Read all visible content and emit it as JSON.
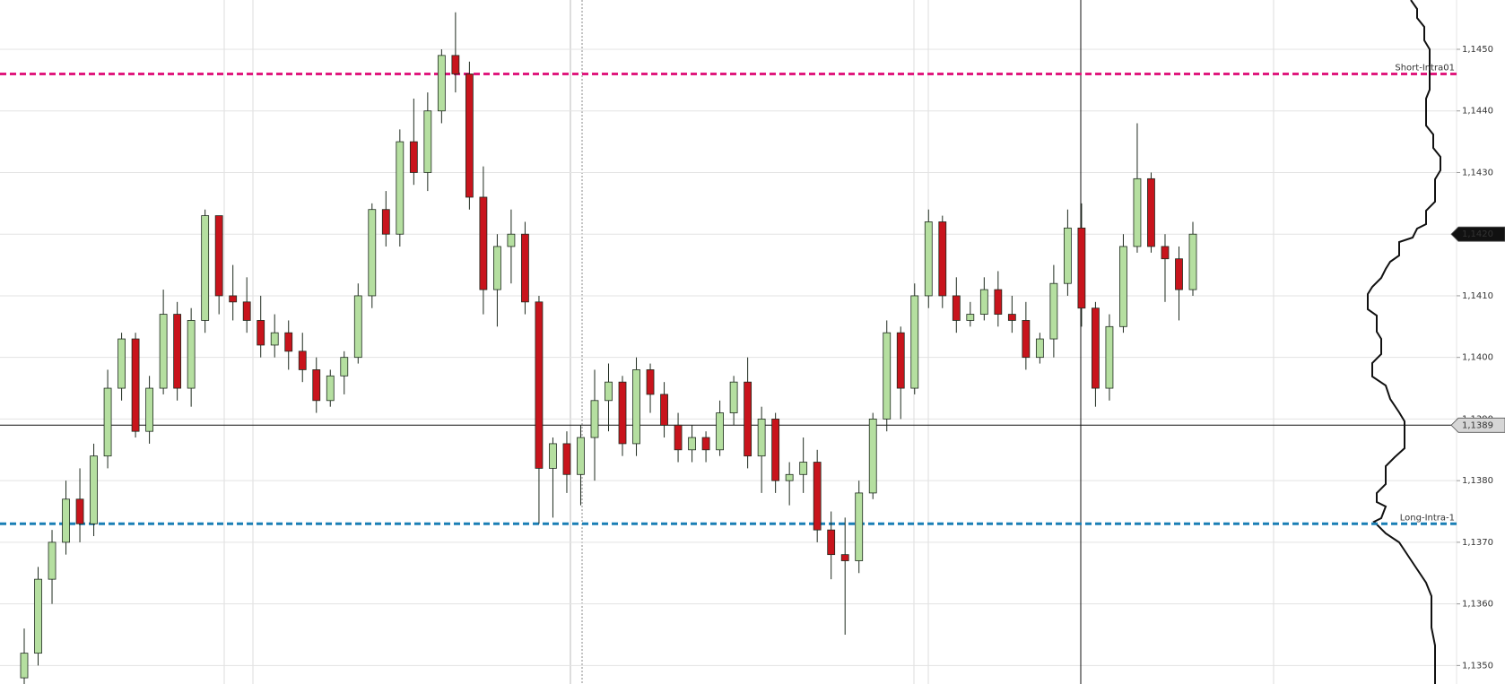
{
  "chart_data": {
    "type": "candlestick",
    "ylim": [
      1.1347,
      1.1458
    ],
    "yticks": [
      {
        "value": 1.135,
        "label": "1,1350"
      },
      {
        "value": 1.136,
        "label": "1,1360"
      },
      {
        "value": 1.137,
        "label": "1,1370"
      },
      {
        "value": 1.138,
        "label": "1,1380"
      },
      {
        "value": 1.139,
        "label": "1,1390"
      },
      {
        "value": 1.14,
        "label": "1,1400"
      },
      {
        "value": 1.141,
        "label": "1,1410"
      },
      {
        "value": 1.142,
        "label": "1,1420"
      },
      {
        "value": 1.143,
        "label": "1,1430"
      },
      {
        "value": 1.144,
        "label": "1,1440"
      },
      {
        "value": 1.145,
        "label": "1,1450"
      }
    ],
    "grid": true,
    "up_color": "#b5dfa0",
    "down_color": "#c8141c",
    "outline_color": "#1e2a1e",
    "levels": [
      {
        "name": "Short-Intra01",
        "value": 1.1446,
        "color": "#e0197d"
      },
      {
        "name": "Long-Intra-1",
        "value": 1.1373,
        "color": "#1a7fb5"
      }
    ],
    "last_price": {
      "value": 1.142,
      "label": "1,1420"
    },
    "crosshair_price": {
      "value": 1.1389,
      "label": "1,1389"
    },
    "candles": [
      [
        1.1348,
        1.1356,
        1.1344,
        1.1352
      ],
      [
        1.1352,
        1.1366,
        1.135,
        1.1364
      ],
      [
        1.1364,
        1.1372,
        1.136,
        1.137
      ],
      [
        1.137,
        1.138,
        1.1368,
        1.1377
      ],
      [
        1.1377,
        1.1382,
        1.137,
        1.1373
      ],
      [
        1.1373,
        1.1386,
        1.1371,
        1.1384
      ],
      [
        1.1384,
        1.1398,
        1.1382,
        1.1395
      ],
      [
        1.1395,
        1.1404,
        1.1393,
        1.1403
      ],
      [
        1.1403,
        1.1404,
        1.1387,
        1.1388
      ],
      [
        1.1388,
        1.1397,
        1.1386,
        1.1395
      ],
      [
        1.1395,
        1.1411,
        1.1394,
        1.1407
      ],
      [
        1.1407,
        1.1409,
        1.1393,
        1.1395
      ],
      [
        1.1395,
        1.1408,
        1.1392,
        1.1406
      ],
      [
        1.1406,
        1.1424,
        1.1404,
        1.1423
      ],
      [
        1.1423,
        1.1423,
        1.1407,
        1.141
      ],
      [
        1.141,
        1.1415,
        1.1406,
        1.1409
      ],
      [
        1.1409,
        1.1413,
        1.1404,
        1.1406
      ],
      [
        1.1406,
        1.141,
        1.14,
        1.1402
      ],
      [
        1.1402,
        1.1407,
        1.14,
        1.1404
      ],
      [
        1.1404,
        1.1406,
        1.1398,
        1.1401
      ],
      [
        1.1401,
        1.1404,
        1.1396,
        1.1398
      ],
      [
        1.1398,
        1.14,
        1.1391,
        1.1393
      ],
      [
        1.1393,
        1.1398,
        1.1392,
        1.1397
      ],
      [
        1.1397,
        1.1401,
        1.1394,
        1.14
      ],
      [
        1.14,
        1.1412,
        1.1399,
        1.141
      ],
      [
        1.141,
        1.1425,
        1.1408,
        1.1424
      ],
      [
        1.1424,
        1.1427,
        1.1418,
        1.142
      ],
      [
        1.142,
        1.1437,
        1.1418,
        1.1435
      ],
      [
        1.1435,
        1.1442,
        1.1428,
        1.143
      ],
      [
        1.143,
        1.1443,
        1.1427,
        1.144
      ],
      [
        1.144,
        1.145,
        1.1438,
        1.1449
      ],
      [
        1.1449,
        1.1456,
        1.1443,
        1.1446
      ],
      [
        1.1446,
        1.1448,
        1.1424,
        1.1426
      ],
      [
        1.1426,
        1.1431,
        1.1407,
        1.1411
      ],
      [
        1.1411,
        1.142,
        1.1405,
        1.1418
      ],
      [
        1.1418,
        1.1424,
        1.1412,
        1.142
      ],
      [
        1.142,
        1.1422,
        1.1407,
        1.1409
      ],
      [
        1.1409,
        1.141,
        1.1373,
        1.1382
      ],
      [
        1.1382,
        1.1387,
        1.1374,
        1.1386
      ],
      [
        1.1386,
        1.1388,
        1.1378,
        1.1381
      ],
      [
        1.1381,
        1.1389,
        1.1376,
        1.1387
      ],
      [
        1.1387,
        1.1398,
        1.138,
        1.1393
      ],
      [
        1.1393,
        1.1399,
        1.1388,
        1.1396
      ],
      [
        1.1396,
        1.1397,
        1.1384,
        1.1386
      ],
      [
        1.1386,
        1.14,
        1.1384,
        1.1398
      ],
      [
        1.1398,
        1.1399,
        1.1391,
        1.1394
      ],
      [
        1.1394,
        1.1396,
        1.1387,
        1.1389
      ],
      [
        1.1389,
        1.1391,
        1.1383,
        1.1385
      ],
      [
        1.1385,
        1.1389,
        1.1383,
        1.1387
      ],
      [
        1.1387,
        1.1388,
        1.1383,
        1.1385
      ],
      [
        1.1385,
        1.1393,
        1.1384,
        1.1391
      ],
      [
        1.1391,
        1.1397,
        1.1389,
        1.1396
      ],
      [
        1.1396,
        1.14,
        1.1382,
        1.1384
      ],
      [
        1.1384,
        1.1392,
        1.1378,
        1.139
      ],
      [
        1.139,
        1.1391,
        1.1378,
        1.138
      ],
      [
        1.138,
        1.1383,
        1.1376,
        1.1381
      ],
      [
        1.1381,
        1.1387,
        1.1378,
        1.1383
      ],
      [
        1.1383,
        1.1385,
        1.137,
        1.1372
      ],
      [
        1.1372,
        1.1375,
        1.1364,
        1.1368
      ],
      [
        1.1368,
        1.1374,
        1.1355,
        1.1367
      ],
      [
        1.1367,
        1.138,
        1.1365,
        1.1378
      ],
      [
        1.1378,
        1.1391,
        1.1377,
        1.139
      ],
      [
        1.139,
        1.1406,
        1.1388,
        1.1404
      ],
      [
        1.1404,
        1.1405,
        1.139,
        1.1395
      ],
      [
        1.1395,
        1.1412,
        1.1394,
        1.141
      ],
      [
        1.141,
        1.1424,
        1.1408,
        1.1422
      ],
      [
        1.1422,
        1.1423,
        1.1408,
        1.141
      ],
      [
        1.141,
        1.1413,
        1.1404,
        1.1406
      ],
      [
        1.1406,
        1.1409,
        1.1405,
        1.1407
      ],
      [
        1.1407,
        1.1413,
        1.1406,
        1.1411
      ],
      [
        1.1411,
        1.1414,
        1.1405,
        1.1407
      ],
      [
        1.1407,
        1.141,
        1.1404,
        1.1406
      ],
      [
        1.1406,
        1.1409,
        1.1398,
        1.14
      ],
      [
        1.14,
        1.1404,
        1.1399,
        1.1403
      ],
      [
        1.1403,
        1.1415,
        1.14,
        1.1412
      ],
      [
        1.1412,
        1.1424,
        1.141,
        1.1421
      ],
      [
        1.1421,
        1.1425,
        1.1405,
        1.1408
      ],
      [
        1.1408,
        1.1409,
        1.1392,
        1.1395
      ],
      [
        1.1395,
        1.1407,
        1.1393,
        1.1405
      ],
      [
        1.1405,
        1.142,
        1.1404,
        1.1418
      ],
      [
        1.1418,
        1.1438,
        1.1417,
        1.1429
      ],
      [
        1.1429,
        1.143,
        1.1417,
        1.1418
      ],
      [
        1.1418,
        1.142,
        1.1409,
        1.1416
      ],
      [
        1.1416,
        1.1418,
        1.1406,
        1.1411
      ],
      [
        1.1411,
        1.1422,
        1.141,
        1.142
      ]
    ]
  }
}
